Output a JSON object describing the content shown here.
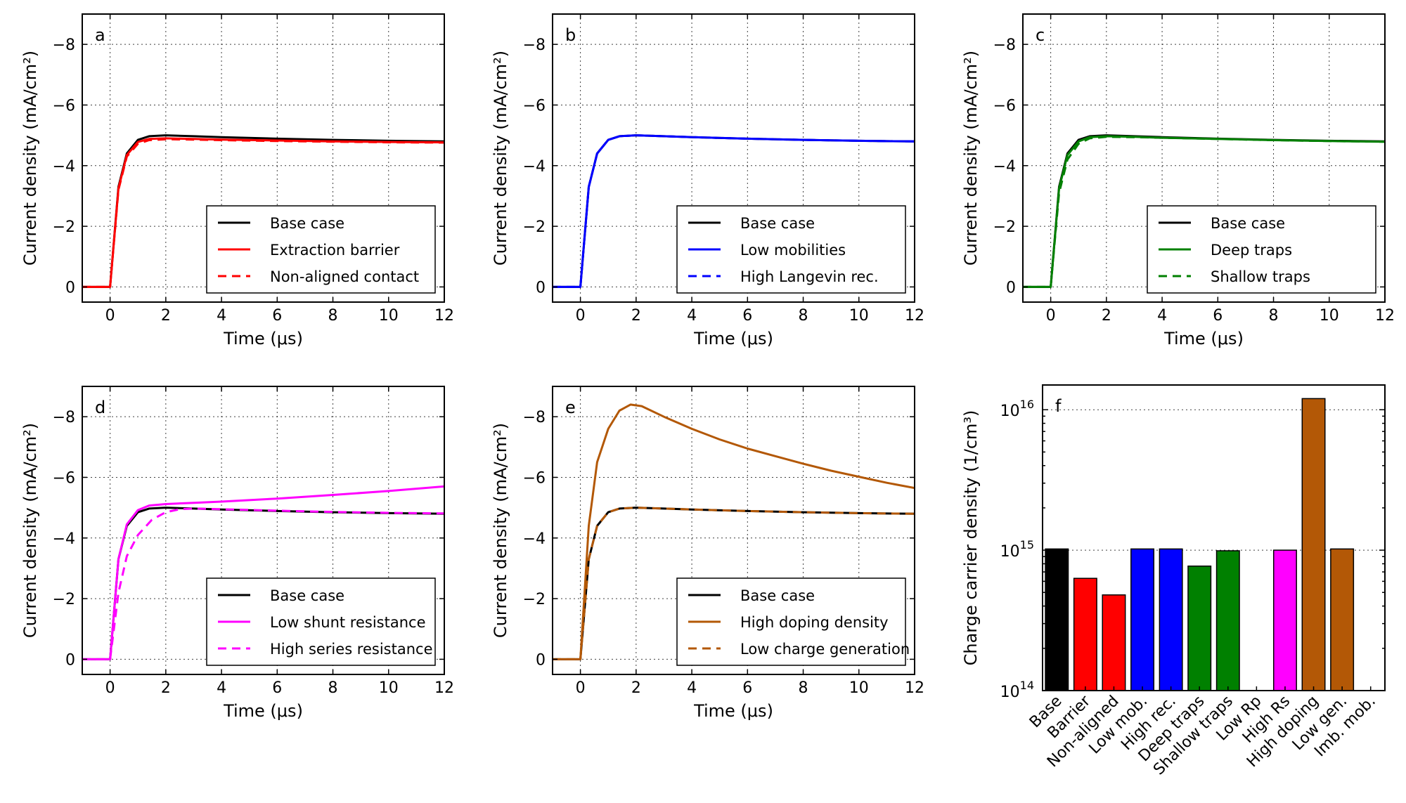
{
  "figure": {
    "colors": {
      "black": "#000000",
      "red": "#ff0000",
      "blue": "#0000ff",
      "green": "#008000",
      "magenta": "#ff00ff",
      "orange": "#b35806"
    }
  },
  "chart_data": [
    {
      "id": "a",
      "type": "line",
      "panel_label": "a",
      "xlabel": "Time (μs)",
      "ylabel": "Current density (mA/cm²)",
      "xlim": [
        -1,
        12
      ],
      "ylim": [
        0.5,
        -9
      ],
      "xticks": [
        0,
        2,
        4,
        6,
        8,
        10,
        12
      ],
      "yticks": [
        0,
        -2,
        -4,
        -6,
        -8
      ],
      "xtick_labels": [
        "0",
        "2",
        "4",
        "6",
        "8",
        "10",
        "12"
      ],
      "ytick_labels": [
        "0",
        "−2",
        "−4",
        "−6",
        "−8"
      ],
      "legend_position": "lower-right",
      "series": [
        {
          "name": "Base case",
          "color": "#000000",
          "dash": "solid",
          "x": [
            -1,
            0,
            0.3,
            0.6,
            1,
            1.4,
            2,
            3,
            4,
            6,
            8,
            10,
            12
          ],
          "y": [
            0,
            0,
            -3.3,
            -4.4,
            -4.85,
            -4.97,
            -5.0,
            -4.97,
            -4.94,
            -4.89,
            -4.85,
            -4.82,
            -4.8
          ]
        },
        {
          "name": "Extraction barrier",
          "color": "#ff0000",
          "dash": "solid",
          "x": [
            -1,
            0,
            0.3,
            0.6,
            1,
            1.4,
            2,
            3,
            4,
            6,
            8,
            10,
            12
          ],
          "y": [
            0,
            0,
            -3.25,
            -4.35,
            -4.78,
            -4.88,
            -4.9,
            -4.88,
            -4.86,
            -4.83,
            -4.8,
            -4.78,
            -4.77
          ]
        },
        {
          "name": "Non-aligned contact",
          "color": "#ff0000",
          "dash": "dashed",
          "x": [
            -1,
            0,
            0.3,
            0.6,
            1,
            1.4,
            2,
            3,
            4,
            6,
            8,
            10,
            12
          ],
          "y": [
            0,
            0,
            -3.2,
            -4.3,
            -4.72,
            -4.84,
            -4.87,
            -4.86,
            -4.84,
            -4.81,
            -4.79,
            -4.77,
            -4.76
          ]
        }
      ]
    },
    {
      "id": "b",
      "type": "line",
      "panel_label": "b",
      "xlabel": "Time (μs)",
      "ylabel": "Current density (mA/cm²)",
      "xlim": [
        -1,
        12
      ],
      "ylim": [
        0.5,
        -9
      ],
      "xticks": [
        0,
        2,
        4,
        6,
        8,
        10,
        12
      ],
      "yticks": [
        0,
        -2,
        -4,
        -6,
        -8
      ],
      "xtick_labels": [
        "0",
        "2",
        "4",
        "6",
        "8",
        "10",
        "12"
      ],
      "ytick_labels": [
        "0",
        "−2",
        "−4",
        "−6",
        "−8"
      ],
      "legend_position": "lower-right",
      "series": [
        {
          "name": "Base case",
          "color": "#000000",
          "dash": "solid",
          "x": [
            -1,
            0,
            0.3,
            0.6,
            1,
            1.4,
            2,
            3,
            4,
            6,
            8,
            10,
            12
          ],
          "y": [
            0,
            0,
            -3.3,
            -4.4,
            -4.85,
            -4.97,
            -5.0,
            -4.97,
            -4.94,
            -4.89,
            -4.85,
            -4.82,
            -4.8
          ]
        },
        {
          "name": "Low mobilities",
          "color": "#0000ff",
          "dash": "solid",
          "x": [
            -1,
            0,
            0.3,
            0.6,
            1,
            1.4,
            2,
            3,
            4,
            6,
            8,
            10,
            12
          ],
          "y": [
            0,
            0,
            -3.3,
            -4.4,
            -4.85,
            -4.97,
            -5.0,
            -4.97,
            -4.94,
            -4.89,
            -4.85,
            -4.82,
            -4.8
          ]
        },
        {
          "name": "High Langevin rec.",
          "color": "#0000ff",
          "dash": "dashed",
          "x": [
            -1,
            0,
            0.3,
            0.6,
            1,
            1.4,
            2,
            3,
            4,
            6,
            8,
            10,
            12
          ],
          "y": [
            0,
            0,
            -3.3,
            -4.4,
            -4.85,
            -4.97,
            -5.0,
            -4.97,
            -4.94,
            -4.89,
            -4.85,
            -4.82,
            -4.8
          ]
        }
      ]
    },
    {
      "id": "c",
      "type": "line",
      "panel_label": "c",
      "xlabel": "Time (μs)",
      "ylabel": "Current density (mA/cm²)",
      "xlim": [
        -1,
        12
      ],
      "ylim": [
        0.5,
        -9
      ],
      "xticks": [
        0,
        2,
        4,
        6,
        8,
        10,
        12
      ],
      "yticks": [
        0,
        -2,
        -4,
        -6,
        -8
      ],
      "xtick_labels": [
        "0",
        "2",
        "4",
        "6",
        "8",
        "10",
        "12"
      ],
      "ytick_labels": [
        "0",
        "−2",
        "−4",
        "−6",
        "−8"
      ],
      "legend_position": "lower-right",
      "series": [
        {
          "name": "Base case",
          "color": "#000000",
          "dash": "solid",
          "x": [
            -1,
            0,
            0.3,
            0.6,
            1,
            1.4,
            2,
            3,
            4,
            6,
            8,
            10,
            12
          ],
          "y": [
            0,
            0,
            -3.3,
            -4.4,
            -4.85,
            -4.97,
            -5.0,
            -4.97,
            -4.94,
            -4.89,
            -4.85,
            -4.82,
            -4.8
          ]
        },
        {
          "name": "Deep traps",
          "color": "#008000",
          "dash": "solid",
          "x": [
            -1,
            0,
            0.3,
            0.6,
            1,
            1.4,
            2,
            3,
            4,
            6,
            8,
            10,
            12
          ],
          "y": [
            0,
            0,
            -3.25,
            -4.35,
            -4.8,
            -4.94,
            -4.97,
            -4.95,
            -4.92,
            -4.88,
            -4.84,
            -4.81,
            -4.79
          ]
        },
        {
          "name": "Shallow traps",
          "color": "#008000",
          "dash": "dashed",
          "x": [
            -1,
            0,
            0.3,
            0.6,
            1,
            1.4,
            2,
            3,
            4,
            6,
            8,
            10,
            12
          ],
          "y": [
            0,
            0,
            -3.1,
            -4.2,
            -4.72,
            -4.9,
            -4.95,
            -4.94,
            -4.92,
            -4.88,
            -4.84,
            -4.81,
            -4.79
          ]
        }
      ]
    },
    {
      "id": "d",
      "type": "line",
      "panel_label": "d",
      "xlabel": "Time (μs)",
      "ylabel": "Current density (mA/cm²)",
      "xlim": [
        -1,
        12
      ],
      "ylim": [
        0.5,
        -9
      ],
      "xticks": [
        0,
        2,
        4,
        6,
        8,
        10,
        12
      ],
      "yticks": [
        0,
        -2,
        -4,
        -6,
        -8
      ],
      "xtick_labels": [
        "0",
        "2",
        "4",
        "6",
        "8",
        "10",
        "12"
      ],
      "ytick_labels": [
        "0",
        "−2",
        "−4",
        "−6",
        "−8"
      ],
      "legend_position": "lower-right",
      "series": [
        {
          "name": "Base case",
          "color": "#000000",
          "dash": "solid",
          "x": [
            -1,
            0,
            0.3,
            0.6,
            1,
            1.4,
            2,
            3,
            4,
            6,
            8,
            10,
            12
          ],
          "y": [
            0,
            0,
            -3.3,
            -4.4,
            -4.85,
            -4.97,
            -5.0,
            -4.97,
            -4.94,
            -4.89,
            -4.85,
            -4.82,
            -4.8
          ]
        },
        {
          "name": "Low shunt resistance",
          "color": "#ff00ff",
          "dash": "solid",
          "x": [
            -1,
            0,
            0.3,
            0.6,
            1,
            1.4,
            2,
            3,
            4,
            6,
            8,
            10,
            12
          ],
          "y": [
            0,
            0,
            -3.3,
            -4.45,
            -4.92,
            -5.07,
            -5.12,
            -5.16,
            -5.2,
            -5.3,
            -5.42,
            -5.55,
            -5.7
          ]
        },
        {
          "name": "High series resistance",
          "color": "#ff00ff",
          "dash": "dashed",
          "x": [
            -1,
            0,
            0.3,
            0.6,
            1,
            1.5,
            2,
            2.5,
            3,
            4,
            6,
            8,
            10,
            12
          ],
          "y": [
            0,
            0,
            -2.2,
            -3.4,
            -4.1,
            -4.6,
            -4.85,
            -4.95,
            -4.97,
            -4.95,
            -4.9,
            -4.86,
            -4.83,
            -4.81
          ]
        }
      ]
    },
    {
      "id": "e",
      "type": "line",
      "panel_label": "e",
      "xlabel": "Time (μs)",
      "ylabel": "Current density (mA/cm²)",
      "xlim": [
        -1,
        12
      ],
      "ylim": [
        0.5,
        -9
      ],
      "xticks": [
        0,
        2,
        4,
        6,
        8,
        10,
        12
      ],
      "yticks": [
        0,
        -2,
        -4,
        -6,
        -8
      ],
      "xtick_labels": [
        "0",
        "2",
        "4",
        "6",
        "8",
        "10",
        "12"
      ],
      "ytick_labels": [
        "0",
        "−2",
        "−4",
        "−6",
        "−8"
      ],
      "legend_position": "lower-right",
      "series": [
        {
          "name": "Base case",
          "color": "#000000",
          "dash": "solid",
          "x": [
            -1,
            0,
            0.3,
            0.6,
            1,
            1.4,
            2,
            3,
            4,
            6,
            8,
            10,
            12
          ],
          "y": [
            0,
            0,
            -3.3,
            -4.4,
            -4.85,
            -4.97,
            -5.0,
            -4.97,
            -4.94,
            -4.89,
            -4.85,
            -4.82,
            -4.8
          ]
        },
        {
          "name": "High doping density",
          "color": "#b35806",
          "dash": "solid",
          "x": [
            -1,
            0,
            0.3,
            0.6,
            1,
            1.4,
            1.8,
            2.2,
            3,
            4,
            5,
            6,
            7,
            8,
            9,
            10,
            11,
            12
          ],
          "y": [
            0,
            0,
            -4.4,
            -6.5,
            -7.6,
            -8.2,
            -8.4,
            -8.35,
            -8.0,
            -7.6,
            -7.25,
            -6.95,
            -6.7,
            -6.45,
            -6.22,
            -6.02,
            -5.82,
            -5.65
          ]
        },
        {
          "name": "Low charge generation",
          "color": "#b35806",
          "dash": "dashed",
          "x": [
            -1,
            0,
            0.3,
            0.6,
            1,
            1.4,
            2,
            3,
            4,
            6,
            8,
            10,
            12
          ],
          "y": [
            0,
            0,
            -3.3,
            -4.4,
            -4.85,
            -4.97,
            -5.0,
            -4.97,
            -4.94,
            -4.89,
            -4.85,
            -4.82,
            -4.8
          ]
        }
      ]
    },
    {
      "id": "f",
      "type": "bar",
      "panel_label": "f",
      "yscale": "log",
      "ylabel": "Charge carrier density (1/cm³)",
      "ylim": [
        100000000000000.0,
        1.5e+16
      ],
      "yticks": [
        100000000000000.0,
        1000000000000000.0,
        1e+16
      ],
      "ytick_labels": [
        {
          "base": "10",
          "exp": "14"
        },
        {
          "base": "10",
          "exp": "15"
        },
        {
          "base": "10",
          "exp": "16"
        }
      ],
      "categories": [
        "Base",
        "Barrier",
        "Non-aligned",
        "Low mob.",
        "High rec.",
        "Deep traps",
        "Shallow traps",
        "Low Rp",
        "High Rs",
        "High doping",
        "Low gen.",
        "Imb. mob."
      ],
      "values": [
        1020000000000000.0,
        630000000000000.0,
        480000000000000.0,
        1020000000000000.0,
        1020000000000000.0,
        770000000000000.0,
        990000000000000.0,
        null,
        1000000000000000.0,
        1.2e+16,
        1020000000000000.0,
        null
      ],
      "bar_colors": [
        "#000000",
        "#ff0000",
        "#ff0000",
        "#0000ff",
        "#0000ff",
        "#008000",
        "#008000",
        "#ff00ff",
        "#ff00ff",
        "#b35806",
        "#b35806",
        "#b35806"
      ]
    }
  ]
}
